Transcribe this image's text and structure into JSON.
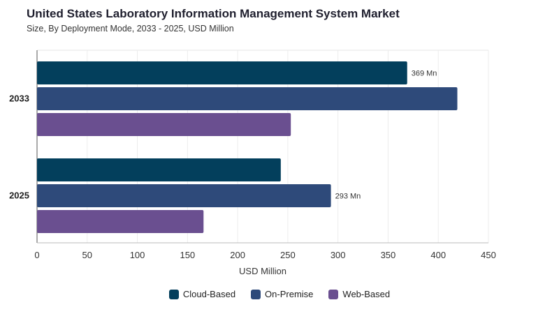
{
  "chart_data": {
    "type": "bar",
    "orientation": "horizontal",
    "title": "United States Laboratory Information Management System Market",
    "subtitle": "Size, By Deployment Mode, 2033 - 2025, USD Million",
    "categories": [
      "2033",
      "2025"
    ],
    "series": [
      {
        "name": "Cloud-Based",
        "color": "#033f5c",
        "values": [
          369,
          243
        ]
      },
      {
        "name": "On-Premise",
        "color": "#2e4a7a",
        "values": [
          419,
          293
        ]
      },
      {
        "name": "Web-Based",
        "color": "#6a4f90",
        "values": [
          253,
          166
        ]
      }
    ],
    "data_labels": [
      {
        "category": "2033",
        "series": "Cloud-Based",
        "text": "369 Mn"
      },
      {
        "category": "2025",
        "series": "On-Premise",
        "text": "293 Mn"
      }
    ],
    "xlabel": "USD Million",
    "ylabel": "",
    "xlim": [
      0,
      450
    ],
    "xticks": [
      0,
      50,
      100,
      150,
      200,
      250,
      300,
      350,
      400,
      450
    ],
    "grid": true,
    "legend_position": "bottom-center"
  }
}
